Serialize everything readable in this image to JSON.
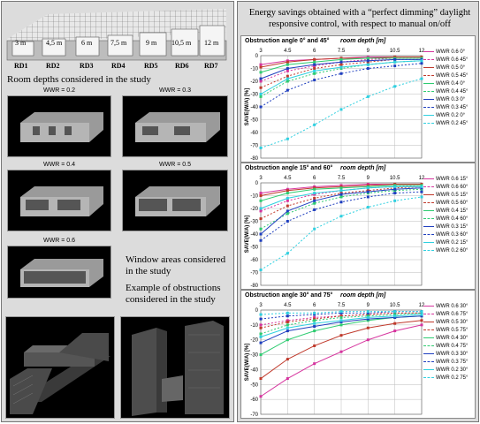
{
  "left": {
    "room_caption": "Room depths considered in the study",
    "dims": [
      "3 m",
      "4,5 m",
      "6 m",
      "7,5 m",
      "9 m",
      "10,5 m",
      "12 m"
    ],
    "rd_labels": [
      "RD1",
      "RD2",
      "RD3",
      "RD4",
      "RD5",
      "RD6",
      "RD7"
    ],
    "wwr_titles": [
      "WWR = 0.2",
      "WWR = 0.3",
      "WWR = 0.4",
      "WWR = 0.5",
      "WWR = 0.6"
    ],
    "window_caption": "Window areas considered in the study",
    "obstruction_caption": "Example of obstructions considered in the study"
  },
  "right": {
    "title": "Energy savings obtained with a “perfect dimming” daylight responsive control, with respect to manual on/off"
  },
  "chart_data": [
    {
      "type": "line",
      "title": "Obstruction angle 0° and 45°",
      "xlabel": "room depth [m]",
      "ylabel": "SAVE(W/A) [%]",
      "x": [
        3,
        4.5,
        6,
        7.5,
        9,
        10.5,
        12
      ],
      "ylim": [
        -80,
        0
      ],
      "yticks": [
        0,
        -10,
        -20,
        -30,
        -40,
        -50,
        -60,
        -70,
        -80
      ],
      "series": [
        {
          "name": "WWR 0.6 0°",
          "color": "#d6349e",
          "dash": false,
          "values": [
            -7,
            -4,
            -3,
            -2,
            -1,
            -1,
            -1
          ]
        },
        {
          "name": "WWR 0.6 45°",
          "color": "#d6349e",
          "dash": true,
          "values": [
            -20,
            -12,
            -8,
            -5,
            -3,
            -2,
            -2
          ]
        },
        {
          "name": "WWR 0.5 0°",
          "color": "#c0392b",
          "dash": false,
          "values": [
            -9,
            -5,
            -3,
            -2,
            -2,
            -1,
            -1
          ]
        },
        {
          "name": "WWR 0.5 45°",
          "color": "#c0392b",
          "dash": true,
          "values": [
            -25,
            -16,
            -10,
            -7,
            -5,
            -3,
            -3
          ]
        },
        {
          "name": "WWR 0.4 0°",
          "color": "#2ecc71",
          "dash": false,
          "values": [
            -13,
            -7,
            -5,
            -3,
            -2,
            -2,
            -2
          ]
        },
        {
          "name": "WWR 0.4 45°",
          "color": "#2ecc71",
          "dash": true,
          "values": [
            -32,
            -20,
            -14,
            -10,
            -7,
            -5,
            -4
          ]
        },
        {
          "name": "WWR 0.3 0°",
          "color": "#1f3fbf",
          "dash": false,
          "values": [
            -18,
            -10,
            -7,
            -5,
            -4,
            -3,
            -3
          ]
        },
        {
          "name": "WWR 0.3 45°",
          "color": "#1f3fbf",
          "dash": true,
          "values": [
            -40,
            -27,
            -19,
            -14,
            -10,
            -8,
            -6
          ]
        },
        {
          "name": "WWR 0.2 0°",
          "color": "#2fd0e0",
          "dash": false,
          "values": [
            -30,
            -18,
            -12,
            -9,
            -7,
            -5,
            -4
          ]
        },
        {
          "name": "WWR 0.2 45°",
          "color": "#2fd0e0",
          "dash": true,
          "values": [
            -72,
            -65,
            -54,
            -42,
            -32,
            -24,
            -18
          ]
        }
      ]
    },
    {
      "type": "line",
      "title": "Obstruction angle 15° and 60°",
      "xlabel": "room depth [m]",
      "ylabel": "SAVE(W/A) [%]",
      "x": [
        3,
        4.5,
        6,
        7.5,
        9,
        10.5,
        12
      ],
      "ylim": [
        -80,
        0
      ],
      "yticks": [
        0,
        -10,
        -20,
        -30,
        -40,
        -50,
        -60,
        -70,
        -80
      ],
      "series": [
        {
          "name": "WWR 0.6 15°",
          "color": "#d6349e",
          "dash": false,
          "values": [
            -8,
            -5,
            -3,
            -2,
            -1,
            -1,
            -1
          ]
        },
        {
          "name": "WWR 0.6 60°",
          "color": "#d6349e",
          "dash": true,
          "values": [
            -22,
            -14,
            -9,
            -6,
            -4,
            -3,
            -2
          ]
        },
        {
          "name": "WWR 0.5 15°",
          "color": "#c0392b",
          "dash": false,
          "values": [
            -10,
            -6,
            -4,
            -3,
            -2,
            -1,
            -1
          ]
        },
        {
          "name": "WWR 0.5 60°",
          "color": "#c0392b",
          "dash": true,
          "values": [
            -28,
            -18,
            -12,
            -8,
            -6,
            -4,
            -3
          ]
        },
        {
          "name": "WWR 0.4 15°",
          "color": "#2ecc71",
          "dash": false,
          "values": [
            -14,
            -8,
            -5,
            -4,
            -3,
            -2,
            -2
          ]
        },
        {
          "name": "WWR 0.4 60°",
          "color": "#2ecc71",
          "dash": true,
          "values": [
            -36,
            -24,
            -16,
            -11,
            -8,
            -6,
            -5
          ]
        },
        {
          "name": "WWR 0.3 15°",
          "color": "#1f3fbf",
          "dash": false,
          "values": [
            -40,
            -22,
            -14,
            -9,
            -7,
            -5,
            -4
          ]
        },
        {
          "name": "WWR 0.3 60°",
          "color": "#1f3fbf",
          "dash": true,
          "values": [
            -45,
            -30,
            -21,
            -15,
            -11,
            -8,
            -7
          ]
        },
        {
          "name": "WWR 0.2 15°",
          "color": "#2fd0e0",
          "dash": false,
          "values": [
            -20,
            -12,
            -8,
            -6,
            -4,
            -3,
            -3
          ]
        },
        {
          "name": "WWR 0.2 60°",
          "color": "#2fd0e0",
          "dash": true,
          "values": [
            -68,
            -55,
            -36,
            -26,
            -19,
            -14,
            -11
          ]
        }
      ]
    },
    {
      "type": "line",
      "title": "Obstruction angle 30° and 75°",
      "xlabel": "room depth [m]",
      "ylabel": "SAVE(W/A) [%]",
      "x": [
        3,
        4.5,
        6,
        7.5,
        9,
        10.5,
        12
      ],
      "ylim": [
        -70,
        0
      ],
      "yticks": [
        0,
        -10,
        -20,
        -30,
        -40,
        -50,
        -60,
        -70
      ],
      "series": [
        {
          "name": "WWR 0.6 30°",
          "color": "#d6349e",
          "dash": false,
          "values": [
            -58,
            -46,
            -36,
            -28,
            -20,
            -14,
            -10
          ]
        },
        {
          "name": "WWR 0.6 75°",
          "color": "#d6349e",
          "dash": true,
          "values": [
            -10,
            -7,
            -5,
            -4,
            -3,
            -2,
            -2
          ]
        },
        {
          "name": "WWR 0.5 30°",
          "color": "#c0392b",
          "dash": false,
          "values": [
            -46,
            -33,
            -24,
            -17,
            -12,
            -9,
            -7
          ]
        },
        {
          "name": "WWR 0.5 75°",
          "color": "#c0392b",
          "dash": true,
          "values": [
            -12,
            -8,
            -6,
            -4,
            -3,
            -2,
            -2
          ]
        },
        {
          "name": "WWR 0.4 30°",
          "color": "#2ecc71",
          "dash": false,
          "values": [
            -30,
            -20,
            -14,
            -10,
            -7,
            -5,
            -4
          ]
        },
        {
          "name": "WWR 0.4 75°",
          "color": "#2ecc71",
          "dash": true,
          "values": [
            -16,
            -10,
            -7,
            -5,
            -4,
            -3,
            -2
          ]
        },
        {
          "name": "WWR 0.3 30°",
          "color": "#1f3fbf",
          "dash": false,
          "values": [
            -22,
            -14,
            -11,
            -8,
            -6,
            -5,
            -4
          ]
        },
        {
          "name": "WWR 0.3 75°",
          "color": "#1f3fbf",
          "dash": true,
          "values": [
            -6,
            -4,
            -3,
            -2,
            -2,
            -1,
            -1
          ]
        },
        {
          "name": "WWR 0.2 30°",
          "color": "#2fd0e0",
          "dash": false,
          "values": [
            -18,
            -12,
            -9,
            -7,
            -5,
            -4,
            -3
          ]
        },
        {
          "name": "WWR 0.2 75°",
          "color": "#2fd0e0",
          "dash": true,
          "values": [
            -3,
            -2,
            -2,
            -1,
            -1,
            -1,
            -1
          ]
        }
      ]
    }
  ]
}
